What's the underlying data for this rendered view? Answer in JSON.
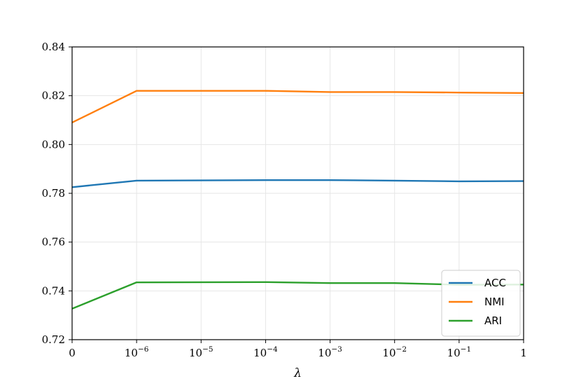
{
  "chart_data": {
    "type": "line",
    "title": "",
    "xlabel": "λ",
    "ylabel": "",
    "categories": [
      "0",
      "10^-6",
      "10^-5",
      "10^-4",
      "10^-3",
      "10^-2",
      "10^-1",
      "1"
    ],
    "x_tick_labels": [
      {
        "base": "0",
        "exp": ""
      },
      {
        "base": "10",
        "exp": "−6"
      },
      {
        "base": "10",
        "exp": "−5"
      },
      {
        "base": "10",
        "exp": "−4"
      },
      {
        "base": "10",
        "exp": "−3"
      },
      {
        "base": "10",
        "exp": "−2"
      },
      {
        "base": "10",
        "exp": "−1"
      },
      {
        "base": "1",
        "exp": ""
      }
    ],
    "ylim": [
      0.72,
      0.84
    ],
    "y_ticks": [
      "0.72",
      "0.74",
      "0.76",
      "0.78",
      "0.80",
      "0.82",
      "0.84"
    ],
    "grid": true,
    "legend_position": "lower-right",
    "series": [
      {
        "name": "ACC",
        "color": "#1f77b4",
        "points": [
          [
            0,
            0.7825
          ],
          [
            2,
            0.7852
          ],
          [
            4,
            0.7853
          ],
          [
            6,
            0.7854
          ],
          [
            8,
            0.7854
          ],
          [
            10,
            0.7852
          ],
          [
            12,
            0.7849
          ],
          [
            14,
            0.785
          ]
        ]
      },
      {
        "name": "NMI",
        "color": "#ff7f0e",
        "points": [
          [
            0,
            0.809
          ],
          [
            2,
            0.822
          ],
          [
            6,
            0.822
          ],
          [
            8,
            0.8215
          ],
          [
            10,
            0.8215
          ],
          [
            12,
            0.8213
          ],
          [
            14,
            0.8211
          ]
        ]
      },
      {
        "name": "ARI",
        "color": "#2ca02c",
        "points": [
          [
            0,
            0.7327
          ],
          [
            2,
            0.7435
          ],
          [
            6,
            0.7436
          ],
          [
            8,
            0.7432
          ],
          [
            10,
            0.7432
          ],
          [
            12,
            0.7425
          ],
          [
            14,
            0.7426
          ]
        ]
      }
    ]
  }
}
